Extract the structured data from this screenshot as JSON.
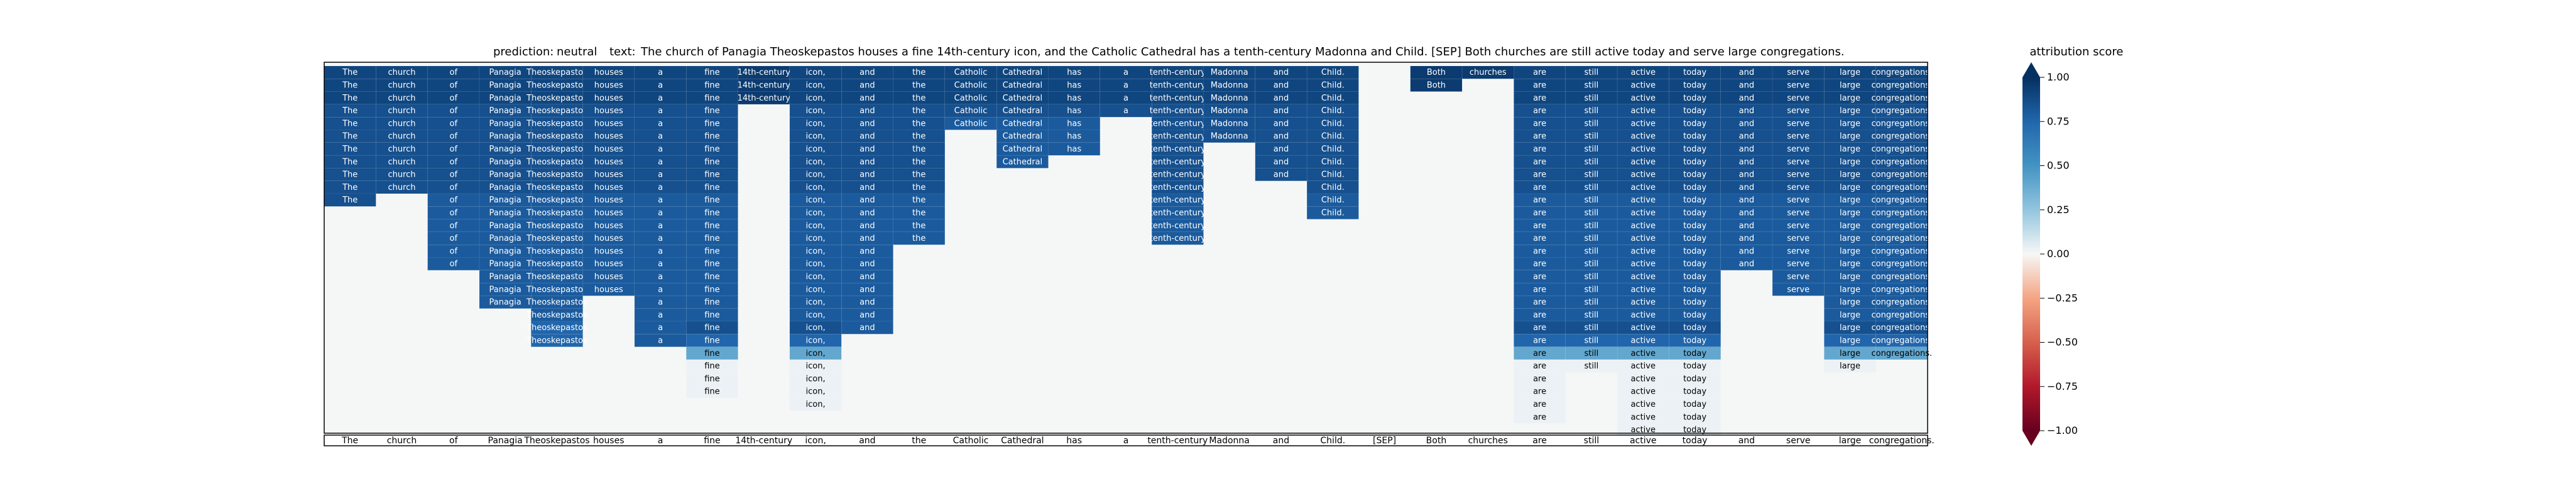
{
  "header": {
    "prediction_label": "prediction:",
    "prediction": "neutral",
    "text_label": "text:",
    "text": "The church of Panagia Theoskepastos houses a fine 14th-century icon, and the Catholic Cathedral has a tenth-century Madonna and Child. [SEP] Both churches are still active today and serve large congregations."
  },
  "colorbar": {
    "title": "attribution score",
    "ticks": [
      1.0,
      0.75,
      0.5,
      0.25,
      0.0,
      -0.25,
      -0.5,
      -0.75,
      -1.0
    ],
    "tick_labels": [
      "1.00",
      "0.75",
      "0.50",
      "0.25",
      "0.00",
      "−0.25",
      "−0.50",
      "−0.75",
      "−1.00"
    ],
    "range": [
      -1.0,
      1.0
    ],
    "colormap": "RdBu",
    "extend": "both"
  },
  "chart_data": {
    "type": "heatmap",
    "title": "",
    "xlabel": "",
    "ylabel": "",
    "tokens": [
      "The",
      "church",
      "of",
      "Panagia",
      "Theoskepastos",
      "houses",
      "a",
      "fine",
      "14th-century",
      "icon,",
      "and",
      "the",
      "Catholic",
      "Cathedral",
      "has",
      "a",
      "tenth-century",
      "Madonna",
      "and",
      "Child.",
      "[SEP]",
      "Both",
      "churches",
      "are",
      "still",
      "active",
      "today",
      "and",
      "serve",
      "large",
      "congregations."
    ],
    "rows": 29,
    "columns": [
      {
        "values": [
          0.9,
          0.9,
          0.9,
          0.85,
          0.85,
          0.85,
          0.85,
          0.85,
          0.85,
          0.85,
          0.85
        ]
      },
      {
        "values": [
          0.9,
          0.9,
          0.9,
          0.85,
          0.85,
          0.85,
          0.85,
          0.85,
          0.85,
          0.85
        ]
      },
      {
        "values": [
          0.9,
          0.9,
          0.9,
          0.85,
          0.85,
          0.85,
          0.85,
          0.85,
          0.85,
          0.85,
          0.8,
          0.8,
          0.8,
          0.8,
          0.8,
          0.8
        ]
      },
      {
        "values": [
          0.9,
          0.9,
          0.9,
          0.85,
          0.85,
          0.85,
          0.85,
          0.85,
          0.85,
          0.85,
          0.8,
          0.8,
          0.8,
          0.8,
          0.8,
          0.8,
          0.8,
          0.8,
          0.8
        ]
      },
      {
        "values": [
          0.9,
          0.9,
          0.9,
          0.85,
          0.85,
          0.85,
          0.85,
          0.85,
          0.85,
          0.85,
          0.8,
          0.8,
          0.8,
          0.8,
          0.8,
          0.8,
          0.8,
          0.8,
          0.8,
          0.8,
          0.75,
          0.75
        ]
      },
      {
        "values": [
          0.9,
          0.9,
          0.9,
          0.85,
          0.85,
          0.85,
          0.85,
          0.85,
          0.85,
          0.85,
          0.8,
          0.8,
          0.8,
          0.8,
          0.8,
          0.8,
          0.8,
          0.8
        ]
      },
      {
        "values": [
          0.9,
          0.9,
          0.9,
          0.85,
          0.85,
          0.85,
          0.85,
          0.85,
          0.85,
          0.85,
          0.8,
          0.8,
          0.8,
          0.8,
          0.8,
          0.8,
          0.8,
          0.8,
          0.8,
          0.8,
          0.8,
          0.8
        ]
      },
      {
        "values": [
          0.9,
          0.9,
          0.9,
          0.85,
          0.85,
          0.85,
          0.85,
          0.85,
          0.85,
          0.85,
          0.8,
          0.8,
          0.8,
          0.8,
          0.8,
          0.8,
          0.8,
          0.8,
          0.8,
          0.8,
          0.85,
          0.75,
          0.4,
          0.03,
          0.03,
          0.03
        ]
      },
      {
        "values": [
          0.95,
          0.95,
          0.95
        ]
      },
      {
        "values": [
          0.9,
          0.9,
          0.9,
          0.85,
          0.85,
          0.85,
          0.85,
          0.85,
          0.85,
          0.85,
          0.8,
          0.8,
          0.8,
          0.8,
          0.8,
          0.8,
          0.8,
          0.8,
          0.8,
          0.8,
          0.85,
          0.75,
          0.4,
          0.03,
          0.03,
          0.03,
          0.03
        ]
      },
      {
        "values": [
          0.9,
          0.9,
          0.9,
          0.85,
          0.85,
          0.85,
          0.85,
          0.85,
          0.85,
          0.85,
          0.8,
          0.8,
          0.8,
          0.8,
          0.8,
          0.8,
          0.8,
          0.8,
          0.8,
          0.8,
          0.8
        ]
      },
      {
        "values": [
          0.9,
          0.9,
          0.9,
          0.85,
          0.85,
          0.85,
          0.85,
          0.85,
          0.85,
          0.85,
          0.8,
          0.8,
          0.8,
          0.8
        ]
      },
      {
        "values": [
          0.9,
          0.9,
          0.9,
          0.85,
          0.8
        ]
      },
      {
        "values": [
          0.9,
          0.9,
          0.9,
          0.85,
          0.8,
          0.8,
          0.8,
          0.8
        ]
      },
      {
        "values": [
          0.9,
          0.9,
          0.9,
          0.85,
          0.8,
          0.8,
          0.8
        ]
      },
      {
        "values": [
          0.9,
          0.9,
          0.9,
          0.85
        ]
      },
      {
        "values": [
          0.9,
          0.9,
          0.9,
          0.85,
          0.85,
          0.85,
          0.85,
          0.85,
          0.85,
          0.85,
          0.8,
          0.8,
          0.8,
          0.8
        ]
      },
      {
        "values": [
          0.9,
          0.9,
          0.9,
          0.85,
          0.85,
          0.85
        ]
      },
      {
        "values": [
          0.9,
          0.9,
          0.9,
          0.85,
          0.85,
          0.85,
          0.85,
          0.85,
          0.85
        ]
      },
      {
        "values": [
          0.9,
          0.9,
          0.9,
          0.85,
          0.85,
          0.85,
          0.85,
          0.85,
          0.85,
          0.85,
          0.8,
          0.8
        ]
      },
      {
        "values": []
      },
      {
        "values": [
          0.95,
          0.95
        ]
      },
      {
        "values": [
          0.95
        ]
      },
      {
        "values": [
          0.9,
          0.9,
          0.9,
          0.85,
          0.85,
          0.85,
          0.85,
          0.85,
          0.85,
          0.85,
          0.8,
          0.8,
          0.8,
          0.8,
          0.8,
          0.8,
          0.8,
          0.8,
          0.8,
          0.8,
          0.85,
          0.75,
          0.4,
          0.03,
          0.03,
          0.03,
          0.03,
          0.03
        ]
      },
      {
        "values": [
          0.9,
          0.9,
          0.9,
          0.85,
          0.85,
          0.85,
          0.85,
          0.85,
          0.85,
          0.85,
          0.8,
          0.8,
          0.8,
          0.8,
          0.8,
          0.8,
          0.8,
          0.8,
          0.8,
          0.8,
          0.85,
          0.75,
          0.4,
          0.03
        ]
      },
      {
        "values": [
          0.9,
          0.9,
          0.9,
          0.85,
          0.85,
          0.85,
          0.85,
          0.85,
          0.85,
          0.85,
          0.8,
          0.8,
          0.8,
          0.8,
          0.8,
          0.8,
          0.8,
          0.8,
          0.8,
          0.8,
          0.85,
          0.75,
          0.4,
          0.03,
          0.03,
          0.03,
          0.03,
          0.03,
          0.03
        ]
      },
      {
        "values": [
          0.9,
          0.9,
          0.9,
          0.85,
          0.85,
          0.85,
          0.85,
          0.85,
          0.85,
          0.85,
          0.8,
          0.8,
          0.8,
          0.8,
          0.8,
          0.8,
          0.8,
          0.8,
          0.8,
          0.8,
          0.85,
          0.75,
          0.4,
          0.03,
          0.03,
          0.03,
          0.03,
          0.03,
          0.03
        ]
      },
      {
        "values": [
          0.9,
          0.9,
          0.9,
          0.85,
          0.85,
          0.85,
          0.85,
          0.85,
          0.85,
          0.85,
          0.8,
          0.8,
          0.8,
          0.8,
          0.8,
          0.8
        ]
      },
      {
        "values": [
          0.9,
          0.9,
          0.9,
          0.85,
          0.85,
          0.85,
          0.85,
          0.85,
          0.85,
          0.85,
          0.8,
          0.8,
          0.8,
          0.8,
          0.8,
          0.8,
          0.8,
          0.8
        ]
      },
      {
        "values": [
          0.9,
          0.9,
          0.9,
          0.85,
          0.85,
          0.85,
          0.85,
          0.85,
          0.85,
          0.85,
          0.8,
          0.8,
          0.8,
          0.8,
          0.8,
          0.8,
          0.8,
          0.8,
          0.8,
          0.8,
          0.85,
          0.75,
          0.4,
          0.03
        ]
      },
      {
        "values": [
          0.9,
          0.9,
          0.9,
          0.85,
          0.85,
          0.85,
          0.85,
          0.85,
          0.85,
          0.85,
          0.8,
          0.8,
          0.8,
          0.8,
          0.8,
          0.8,
          0.8,
          0.8,
          0.8,
          0.8,
          0.85,
          0.75,
          0.4
        ]
      }
    ]
  }
}
